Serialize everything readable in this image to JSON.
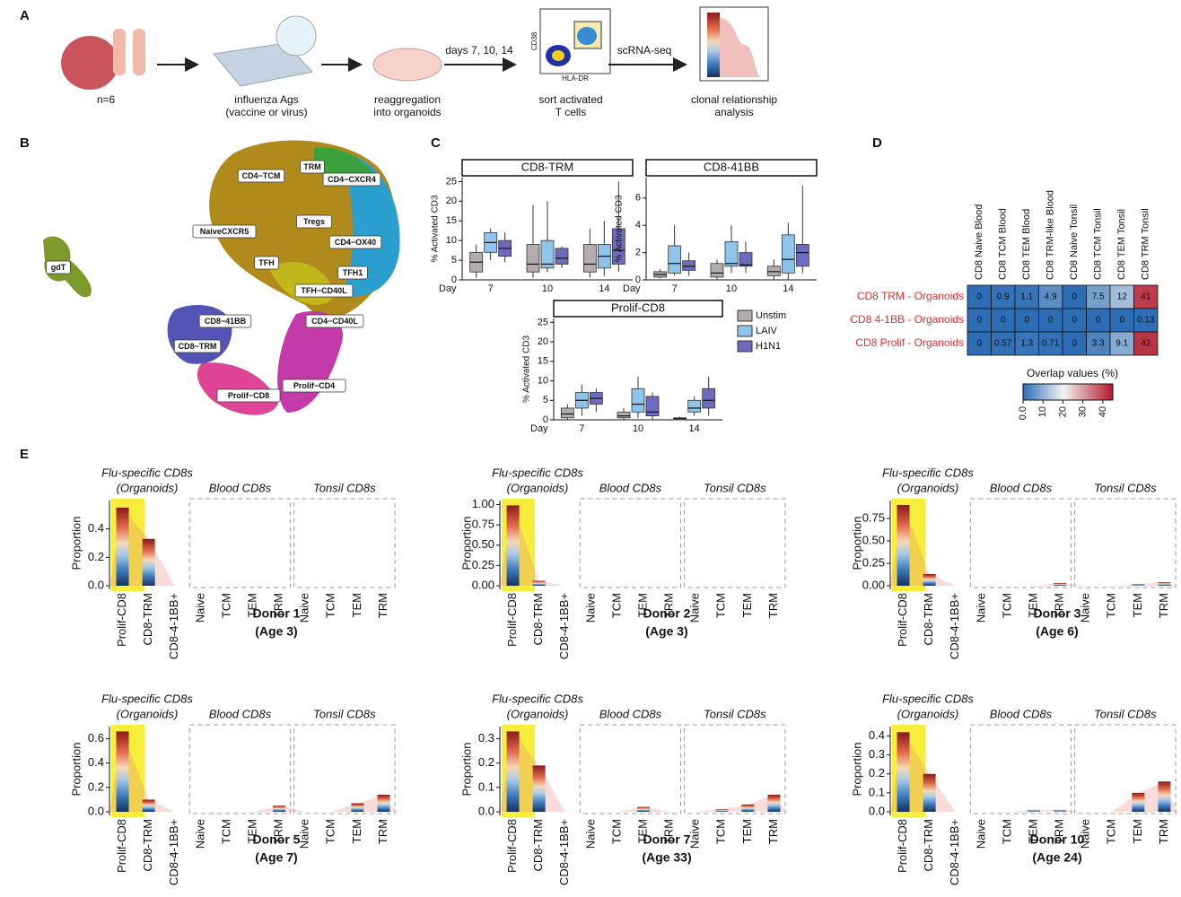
{
  "panel_a": {
    "label": "A",
    "captions": [
      "n=6",
      "influenza Ags",
      "(vaccine or virus)",
      "reaggregation",
      "into organoids",
      "sort activated",
      "T cells",
      "clonal relationship",
      "analysis"
    ],
    "arrows": [
      "days 7, 10, 14",
      "scRNA-seq"
    ],
    "facs_y": "CD38",
    "facs_x": "HLA-DR"
  },
  "panel_b": {
    "label": "B",
    "clusters": [
      "CD4−TCM",
      "TRM",
      "CD4−CXCR4",
      "Tregs",
      "NaiveCXCR5",
      "CD4−OX40",
      "TFH",
      "TFH1",
      "TFH−CD40L",
      "CD4−CD40L",
      "CD8−41BB",
      "CD8−TRM",
      "Prolif−CD8",
      "Prolif−CD4",
      "gdT"
    ]
  },
  "panel_c": {
    "label": "C",
    "y_label": "% Activated CD3",
    "day_label": "Day",
    "days": [
      7,
      10,
      14
    ],
    "legend": [
      {
        "name": "Unstim",
        "color": "#b3acae"
      },
      {
        "name": "LAIV",
        "color": "#8fc4ea"
      },
      {
        "name": "H1N1",
        "color": "#6e6bbf"
      }
    ],
    "facets": [
      {
        "title": "CD8-TRM",
        "ylim": [
          0,
          26
        ],
        "yticks": [
          0,
          5,
          10,
          15,
          20,
          25
        ],
        "boxes": [
          [
            [
              0.5,
              2,
              4.5,
              7,
              9
            ],
            [
              5,
              7,
              9.5,
              12,
              13
            ],
            [
              4.5,
              6,
              8,
              10,
              12
            ]
          ],
          [
            [
              0.5,
              2,
              4,
              9,
              19
            ],
            [
              2,
              3,
              4,
              10,
              20
            ],
            [
              3,
              4,
              5.5,
              8,
              8.5
            ]
          ],
          [
            [
              0.5,
              2,
              4,
              9,
              13
            ],
            [
              1,
              3,
              6,
              9,
              15
            ],
            [
              2,
              4,
              7.5,
              13,
              25
            ]
          ]
        ]
      },
      {
        "title": "CD8-41BB",
        "ylim": [
          0,
          7.5
        ],
        "yticks": [
          0,
          2,
          4,
          6
        ],
        "boxes": [
          [
            [
              0.1,
              0.2,
              0.4,
              0.6,
              0.8
            ],
            [
              0.3,
              0.5,
              1.2,
              2.5,
              4
            ],
            [
              0.3,
              0.7,
              1,
              1.4,
              2
            ]
          ],
          [
            [
              0,
              0.2,
              0.5,
              1.2,
              1.5
            ],
            [
              0.5,
              1,
              1.2,
              2.8,
              4
            ],
            [
              0.5,
              1,
              1.1,
              2,
              2.8
            ]
          ],
          [
            [
              0,
              0.3,
              0.6,
              1,
              1.5
            ],
            [
              0,
              0.5,
              1.5,
              3.3,
              4.2
            ],
            [
              0.5,
              1,
              2,
              2.6,
              6.9
            ]
          ]
        ]
      },
      {
        "title": "Prolif-CD8",
        "ylim": [
          0,
          26
        ],
        "yticks": [
          0,
          5,
          10,
          15,
          20,
          25
        ],
        "boxes": [
          [
            [
              0,
              0.5,
              1.5,
              3,
              4
            ],
            [
              1,
              3,
              5,
              7,
              9
            ],
            [
              2,
              4,
              5.5,
              7,
              8
            ]
          ],
          [
            [
              0,
              0.5,
              1,
              2,
              3
            ],
            [
              0.5,
              2,
              4,
              8,
              11
            ],
            [
              0,
              1,
              2,
              6,
              7
            ]
          ],
          [
            [
              0,
              0,
              0.3,
              0.5,
              0.8
            ],
            [
              1,
              2,
              3,
              5,
              6
            ],
            [
              1,
              3,
              5,
              8,
              11
            ]
          ]
        ]
      }
    ]
  },
  "panel_d": {
    "label": "D",
    "columns": [
      "CD8 Naive Blood",
      "CD8 TCM Blood",
      "CD8 TEM Blood",
      "CD8 TRM-like Blood",
      "CD8 Naive Tonsil",
      "CD8 TCM Tonsil",
      "CD8 TEM Tonsil",
      "CD8 TRM Tonsil"
    ],
    "rows": [
      "CD8 TRM - Organoids",
      "CD8 4-1BB - Organoids",
      "CD8 Prolif - Organoids"
    ],
    "values": [
      [
        0,
        0.9,
        1.1,
        4.9,
        0,
        7.5,
        12,
        41
      ],
      [
        0,
        0,
        0,
        0,
        0,
        0,
        0,
        0.13
      ],
      [
        0,
        0.57,
        1.3,
        0.71,
        0,
        3.3,
        9.1,
        42
      ]
    ],
    "colorbar": {
      "title": "Overlap values (%)",
      "lim": [
        0,
        45
      ],
      "ticks": [
        {
          "value": 0,
          "label": "0.0"
        },
        10,
        20,
        30,
        40
      ]
    }
  },
  "panel_e": {
    "label": "E",
    "group_titles": [
      "Flu-specific CD8s",
      "(Organoids)",
      "Blood CD8s",
      "Tonsil CD8s"
    ],
    "y_label": "Proportion",
    "categories": [
      "Prolif-CD8",
      "CD8-TRM",
      "CD8-4-1BB+",
      "Naive",
      "TCM",
      "TEM",
      "TRM",
      "Naive",
      "TCM",
      "TEM",
      "TRM"
    ],
    "donors": [
      {
        "name": "Donor 1",
        "age": "(Age 3)",
        "ylim": [
          0,
          0.6
        ],
        "yticks": [
          {
            "value": 0,
            "label": "0.0"
          },
          0.2,
          0.4
        ],
        "values": [
          0.55,
          0.33,
          0,
          0,
          0,
          0,
          0,
          0,
          0,
          0,
          0
        ]
      },
      {
        "name": "Donor 2",
        "age": "(Age 3)",
        "ylim": [
          0,
          1.05
        ],
        "yticks": [
          {
            "value": 0,
            "label": "0.00"
          },
          0.25,
          {
            "value": 0.5,
            "label": "0.50"
          },
          0.75,
          {
            "value": 1,
            "label": "1.00"
          }
        ],
        "values": [
          0.99,
          0.06,
          0,
          0,
          0,
          0,
          0,
          0,
          0,
          0,
          0
        ]
      },
      {
        "name": "Donor 3",
        "age": "(Age 6)",
        "ylim": [
          0,
          0.95
        ],
        "yticks": [
          {
            "value": 0,
            "label": "0.00"
          },
          0.25,
          {
            "value": 0.5,
            "label": "0.50"
          },
          0.75
        ],
        "values": [
          0.9,
          0.13,
          0,
          0,
          0,
          0,
          0.03,
          0,
          0,
          0.02,
          0.04
        ]
      },
      {
        "name": "Donor 5",
        "age": "(Age 7)",
        "ylim": [
          0,
          0.7
        ],
        "yticks": [
          {
            "value": 0,
            "label": "0.0"
          },
          0.2,
          0.4,
          0.6
        ],
        "values": [
          0.66,
          0.1,
          0,
          0,
          0,
          0,
          0.05,
          0,
          0,
          0.07,
          0.14
        ]
      },
      {
        "name": "Donor 7",
        "age": "(Age 33)",
        "ylim": [
          0,
          0.35
        ],
        "yticks": [
          {
            "value": 0,
            "label": "0.0"
          },
          0.1,
          0.2,
          0.3
        ],
        "values": [
          0.33,
          0.19,
          0,
          0,
          0,
          0.02,
          0,
          0,
          0.01,
          0.03,
          0.07
        ]
      },
      {
        "name": "Donor 10",
        "age": "(Age 24)",
        "ylim": [
          0,
          0.45
        ],
        "yticks": [
          {
            "value": 0,
            "label": "0.0"
          },
          0.1,
          0.2,
          0.3,
          0.4
        ],
        "values": [
          0.42,
          0.2,
          0,
          0,
          0,
          0.01,
          0.01,
          0,
          0,
          0.1,
          0.16
        ]
      }
    ]
  }
}
